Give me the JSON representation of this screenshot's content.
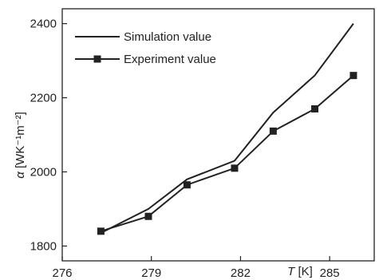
{
  "chart_data": {
    "type": "line",
    "xlabel": {
      "symbol": "T",
      "unit": " [K]"
    },
    "ylabel": {
      "symbol": "α",
      "unit": " [WK⁻¹m⁻²]"
    },
    "xlim": [
      276,
      286.5
    ],
    "ylim": [
      1760,
      2440
    ],
    "xticks": [
      276,
      279,
      282,
      285
    ],
    "yticks": [
      1800,
      2000,
      2200,
      2400
    ],
    "grid": false,
    "legend_position": "top-left",
    "series": [
      {
        "name": "Simulation value",
        "marker": "none",
        "x": [
          277.3,
          278.9,
          280.2,
          281.8,
          283.1,
          284.5,
          285.8
        ],
        "y": [
          1835,
          1900,
          1980,
          2030,
          2160,
          2260,
          2400
        ]
      },
      {
        "name": "Experiment value",
        "marker": "square",
        "x": [
          277.3,
          278.9,
          280.2,
          281.8,
          283.1,
          284.5,
          285.8
        ],
        "y": [
          1840,
          1880,
          1965,
          2010,
          2110,
          2170,
          2260
        ]
      }
    ],
    "colors": {
      "line": "#222222",
      "axis": "#222222"
    }
  }
}
